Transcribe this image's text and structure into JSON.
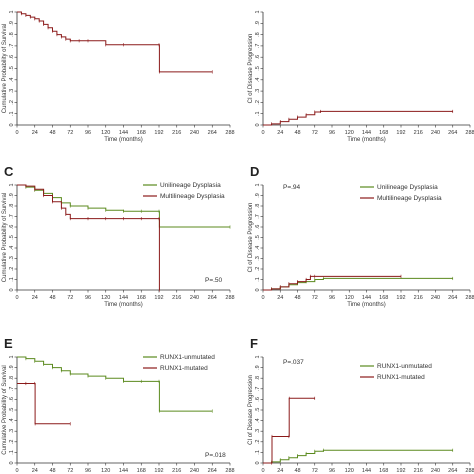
{
  "chart_data": [
    {
      "id": "A",
      "type": "line",
      "panel_label": "",
      "xlabel": "Time (months)",
      "ylabel": "Cumulative Probability of Survival",
      "xticks": [
        0,
        24,
        48,
        72,
        96,
        120,
        144,
        168,
        192,
        216,
        240,
        264,
        288
      ],
      "yticks": [
        0,
        0.1,
        0.2,
        0.3,
        0.4,
        0.5,
        0.6,
        0.7,
        0.8,
        0.9,
        1
      ],
      "xlim": [
        0,
        288
      ],
      "ylim": [
        0,
        1
      ],
      "pvalue": "",
      "legend": [],
      "series": [
        {
          "name": "",
          "color": "#8b1a1a",
          "x": [
            0,
            6,
            12,
            18,
            24,
            30,
            36,
            42,
            48,
            54,
            60,
            66,
            72,
            84,
            96,
            120,
            144,
            192,
            192.5,
            264
          ],
          "y": [
            1,
            0.985,
            0.97,
            0.955,
            0.94,
            0.92,
            0.89,
            0.86,
            0.83,
            0.8,
            0.78,
            0.76,
            0.745,
            0.745,
            0.745,
            0.71,
            0.71,
            0.71,
            0.47,
            0.47
          ]
        }
      ]
    },
    {
      "id": "B",
      "type": "line",
      "panel_label": "",
      "xlabel": "Time (months)",
      "ylabel": "CI of Disease Progression",
      "xticks": [
        0,
        24,
        48,
        72,
        96,
        120,
        144,
        168,
        192,
        216,
        240,
        264,
        288
      ],
      "yticks": [
        0,
        0.1,
        0.2,
        0.3,
        0.4,
        0.5,
        0.6,
        0.7,
        0.8,
        0.9,
        1
      ],
      "xlim": [
        0,
        288
      ],
      "ylim": [
        0,
        1
      ],
      "pvalue": "",
      "legend": [],
      "series": [
        {
          "name": "",
          "color": "#8b1a1a",
          "x": [
            0,
            12,
            24,
            36,
            48,
            60,
            72,
            80,
            264
          ],
          "y": [
            0,
            0.01,
            0.03,
            0.05,
            0.07,
            0.09,
            0.115,
            0.12,
            0.12
          ]
        }
      ]
    },
    {
      "id": "C",
      "type": "line",
      "panel_label": "C",
      "xlabel": "Time (months)",
      "ylabel": "Cumulative Probability of Survival",
      "xticks": [
        0,
        24,
        48,
        72,
        96,
        120,
        144,
        168,
        192,
        216,
        240,
        264,
        288
      ],
      "yticks": [
        0,
        0.1,
        0.2,
        0.3,
        0.4,
        0.5,
        0.6,
        0.7,
        0.8,
        0.9,
        1
      ],
      "xlim": [
        0,
        288
      ],
      "ylim": [
        0,
        1
      ],
      "pvalue": "P=.50",
      "legend": [
        "Unilineage Dysplasia",
        "Multilineage Dysplasia"
      ],
      "series": [
        {
          "name": "Unilineage Dysplasia",
          "color": "#5b8a1e",
          "x": [
            0,
            12,
            24,
            36,
            48,
            60,
            72,
            96,
            120,
            144,
            168,
            192,
            192.5,
            288
          ],
          "y": [
            1,
            0.98,
            0.95,
            0.92,
            0.88,
            0.83,
            0.8,
            0.78,
            0.76,
            0.75,
            0.75,
            0.75,
            0.6,
            0.6
          ]
        },
        {
          "name": "Multilineage Dysplasia",
          "color": "#8b1a1a",
          "x": [
            0,
            12,
            24,
            36,
            48,
            60,
            66,
            72,
            96,
            120,
            144,
            168,
            192,
            192.5
          ],
          "y": [
            1,
            0.99,
            0.96,
            0.9,
            0.84,
            0.78,
            0.72,
            0.68,
            0.68,
            0.68,
            0.68,
            0.68,
            0.68,
            0
          ]
        }
      ]
    },
    {
      "id": "D",
      "type": "line",
      "panel_label": "D",
      "xlabel": "Time (months)",
      "ylabel": "CI of Disease Progression",
      "xticks": [
        0,
        24,
        48,
        72,
        96,
        120,
        144,
        168,
        192,
        216,
        240,
        264,
        288
      ],
      "yticks": [
        0,
        0.1,
        0.2,
        0.3,
        0.4,
        0.5,
        0.6,
        0.7,
        0.8,
        0.9,
        1
      ],
      "xlim": [
        0,
        288
      ],
      "ylim": [
        0,
        1
      ],
      "pvalue": "P=.94",
      "legend": [
        "Unilineage Dysplasia",
        "Multilineage Dysplasia"
      ],
      "series": [
        {
          "name": "Unilineage Dysplasia",
          "color": "#5b8a1e",
          "x": [
            0,
            12,
            24,
            36,
            48,
            60,
            72,
            84,
            264
          ],
          "y": [
            0,
            0.01,
            0.03,
            0.05,
            0.07,
            0.08,
            0.1,
            0.11,
            0.11
          ]
        },
        {
          "name": "Multilineage Dysplasia",
          "color": "#8b1a1a",
          "x": [
            0,
            12,
            24,
            36,
            48,
            60,
            66,
            72,
            192
          ],
          "y": [
            0,
            0.01,
            0.03,
            0.06,
            0.08,
            0.1,
            0.13,
            0.13,
            0.13
          ]
        }
      ]
    },
    {
      "id": "E",
      "type": "line",
      "panel_label": "E",
      "xlabel": "Time (months)",
      "ylabel": "Cumulative Probability of Survival",
      "xticks": [
        0,
        24,
        48,
        72,
        96,
        120,
        144,
        168,
        192,
        216,
        240,
        264,
        288
      ],
      "yticks": [
        0,
        0.1,
        0.2,
        0.3,
        0.4,
        0.5,
        0.6,
        0.7,
        0.8,
        0.9,
        1
      ],
      "xlim": [
        0,
        288
      ],
      "ylim": [
        0,
        1
      ],
      "pvalue": "P=.018",
      "legend": [
        "RUNX1-unmutated",
        "RUNX1-mutated"
      ],
      "series": [
        {
          "name": "RUNX1-unmutated",
          "color": "#5b8a1e",
          "x": [
            0,
            12,
            24,
            36,
            48,
            60,
            72,
            96,
            120,
            144,
            168,
            192,
            192.5,
            264
          ],
          "y": [
            1,
            0.985,
            0.96,
            0.93,
            0.9,
            0.87,
            0.84,
            0.82,
            0.8,
            0.77,
            0.77,
            0.77,
            0.49,
            0.49
          ]
        },
        {
          "name": "RUNX1-mutated",
          "color": "#8b1a1a",
          "x": [
            0,
            12,
            24,
            24.5,
            72
          ],
          "y": [
            0.75,
            0.75,
            0.75,
            0.37,
            0.37
          ]
        }
      ]
    },
    {
      "id": "F",
      "type": "line",
      "panel_label": "F",
      "xlabel": "Time (months)",
      "ylabel": "CI of Disease Progression",
      "xticks": [
        0,
        24,
        48,
        72,
        96,
        120,
        144,
        168,
        192,
        216,
        240,
        264,
        288
      ],
      "yticks": [
        0,
        0.1,
        0.2,
        0.3,
        0.4,
        0.5,
        0.6,
        0.7,
        0.8,
        0.9,
        1
      ],
      "xlim": [
        0,
        288
      ],
      "ylim": [
        0,
        1
      ],
      "pvalue": "P=.037",
      "legend": [
        "RUNX1-unmutated",
        "RUNX1-mutated"
      ],
      "series": [
        {
          "name": "RUNX1-unmutated",
          "color": "#5b8a1e",
          "x": [
            0,
            12,
            24,
            36,
            48,
            60,
            72,
            84,
            264
          ],
          "y": [
            0,
            0.01,
            0.03,
            0.05,
            0.07,
            0.09,
            0.11,
            0.12,
            0.12
          ]
        },
        {
          "name": "RUNX1-mutated",
          "color": "#8b1a1a",
          "x": [
            0,
            12,
            12.5,
            36,
            36.5,
            72
          ],
          "y": [
            0,
            0,
            0.25,
            0.25,
            0.61,
            0.61
          ]
        }
      ]
    }
  ]
}
